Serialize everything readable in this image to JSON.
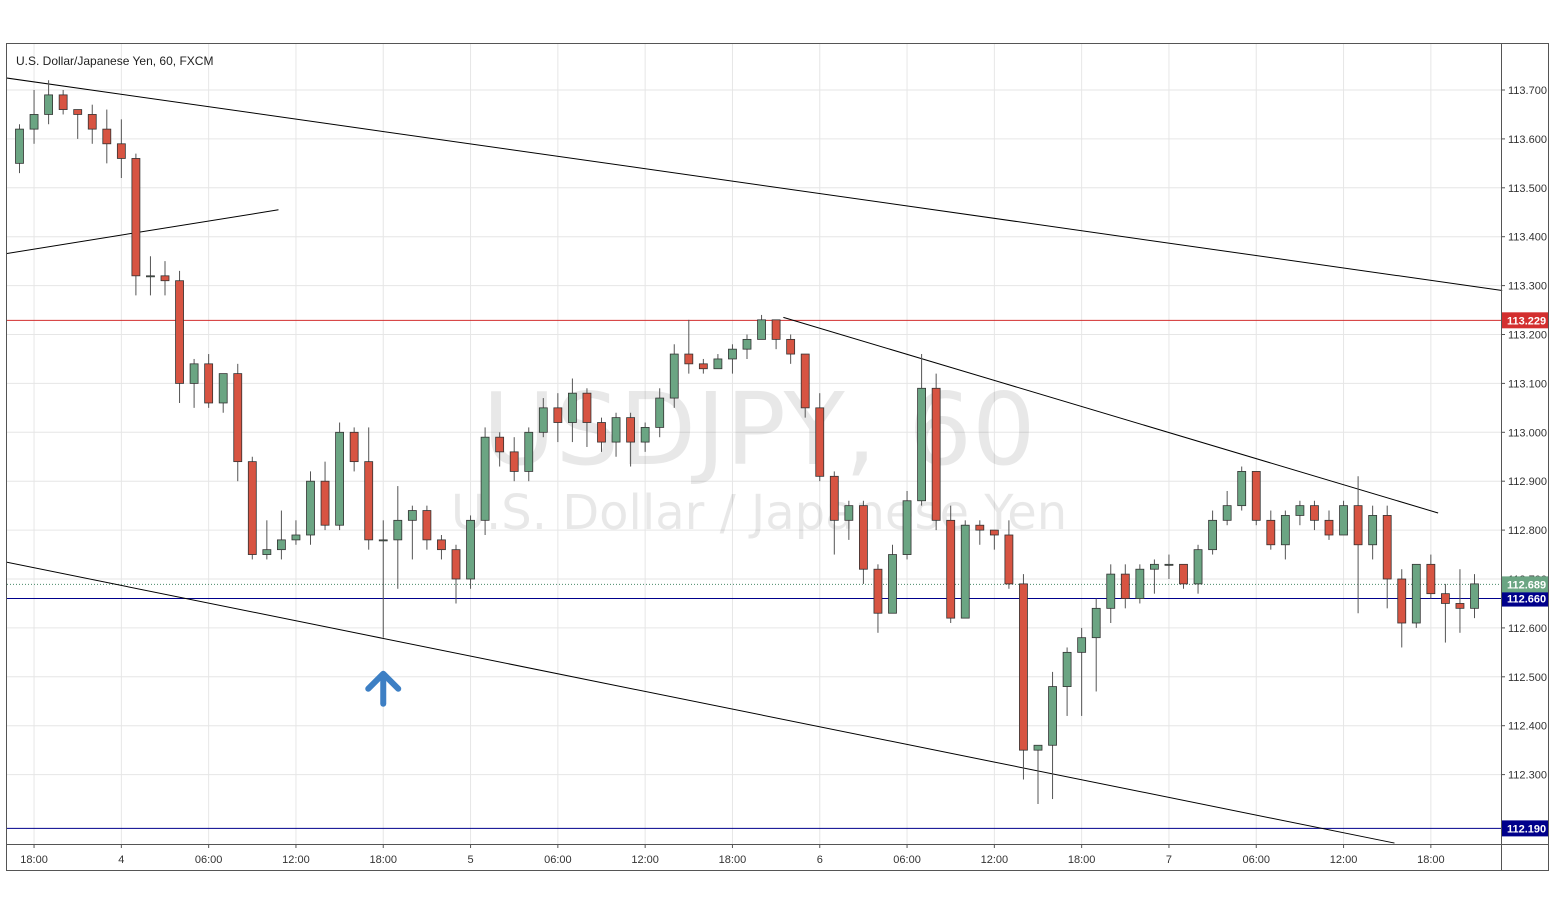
{
  "chart_data": {
    "type": "candlestick",
    "title": "U.S. Dollar/Japanese Yen, 60, FXCM",
    "watermark": {
      "symbol": "USDJPY, 60",
      "name": "U.S. Dollar / Japanese Yen"
    },
    "interval": "60",
    "ylim": [
      112.16,
      113.78
    ],
    "y_ticks": [
      "113.700",
      "113.600",
      "113.500",
      "113.400",
      "113.300",
      "113.200",
      "113.100",
      "113.000",
      "112.900",
      "112.800",
      "112.700",
      "112.600",
      "112.500",
      "112.400",
      "112.300"
    ],
    "x_ticks": [
      "18:00",
      "4",
      "06:00",
      "12:00",
      "18:00",
      "5",
      "06:00",
      "12:00",
      "18:00",
      "6",
      "06:00",
      "12:00",
      "18:00",
      "7",
      "06:00",
      "12:00",
      "18:00"
    ],
    "x_tick_bars": [
      1,
      7,
      13,
      19,
      25,
      31,
      37,
      43,
      49,
      55,
      61,
      67,
      73,
      79,
      85,
      91,
      97
    ],
    "grid": true,
    "colors": {
      "up": "#6ba583",
      "down": "#d75442",
      "wick": "#555555",
      "border": "#333333",
      "resistance": "#d32f2f",
      "support": "#00008b",
      "last": "#2196f3",
      "trendline": "#000000",
      "arrow": "#3d7fc4"
    },
    "candles": [
      [
        113.55,
        113.62,
        113.53,
        113.63
      ],
      [
        113.62,
        113.65,
        113.59,
        113.7
      ],
      [
        113.65,
        113.69,
        113.63,
        113.72
      ],
      [
        113.69,
        113.66,
        113.65,
        113.7
      ],
      [
        113.66,
        113.65,
        113.6,
        113.66
      ],
      [
        113.65,
        113.62,
        113.59,
        113.67
      ],
      [
        113.62,
        113.59,
        113.55,
        113.66
      ],
      [
        113.59,
        113.56,
        113.52,
        113.64
      ],
      [
        113.56,
        113.32,
        113.28,
        113.57
      ],
      [
        113.32,
        113.32,
        113.28,
        113.36
      ],
      [
        113.32,
        113.31,
        113.28,
        113.35
      ],
      [
        113.31,
        113.1,
        113.06,
        113.33
      ],
      [
        113.1,
        113.14,
        113.05,
        113.15
      ],
      [
        113.14,
        113.06,
        113.05,
        113.16
      ],
      [
        113.06,
        113.12,
        113.04,
        113.12
      ],
      [
        113.12,
        112.94,
        112.9,
        113.14
      ],
      [
        112.94,
        112.75,
        112.74,
        112.95
      ],
      [
        112.75,
        112.76,
        112.74,
        112.82
      ],
      [
        112.76,
        112.78,
        112.74,
        112.84
      ],
      [
        112.78,
        112.79,
        112.77,
        112.82
      ],
      [
        112.79,
        112.9,
        112.77,
        112.92
      ],
      [
        112.9,
        112.81,
        112.8,
        112.94
      ],
      [
        112.81,
        113.0,
        112.8,
        113.02
      ],
      [
        113.0,
        112.94,
        112.92,
        113.01
      ],
      [
        112.94,
        112.78,
        112.76,
        113.01
      ],
      [
        112.78,
        112.78,
        112.58,
        112.82
      ],
      [
        112.78,
        112.82,
        112.68,
        112.89
      ],
      [
        112.82,
        112.84,
        112.74,
        112.85
      ],
      [
        112.84,
        112.78,
        112.76,
        112.85
      ],
      [
        112.78,
        112.76,
        112.74,
        112.79
      ],
      [
        112.76,
        112.7,
        112.65,
        112.77
      ],
      [
        112.7,
        112.82,
        112.68,
        112.83
      ],
      [
        112.82,
        112.99,
        112.79,
        113.01
      ],
      [
        112.99,
        112.96,
        112.93,
        113.0
      ],
      [
        112.96,
        112.92,
        112.9,
        112.99
      ],
      [
        112.92,
        113.0,
        112.9,
        113.01
      ],
      [
        113.0,
        113.05,
        112.99,
        113.07
      ],
      [
        113.05,
        113.02,
        112.98,
        113.08
      ],
      [
        113.02,
        113.08,
        112.98,
        113.11
      ],
      [
        113.08,
        113.02,
        112.97,
        113.09
      ],
      [
        113.02,
        112.98,
        112.96,
        113.03
      ],
      [
        112.98,
        113.03,
        112.95,
        113.04
      ],
      [
        113.03,
        112.98,
        112.93,
        113.04
      ],
      [
        112.98,
        113.01,
        112.96,
        113.02
      ],
      [
        113.01,
        113.07,
        112.99,
        113.09
      ],
      [
        113.07,
        113.16,
        113.05,
        113.18
      ],
      [
        113.16,
        113.14,
        113.12,
        113.23
      ],
      [
        113.14,
        113.13,
        113.12,
        113.15
      ],
      [
        113.13,
        113.15,
        113.13,
        113.16
      ],
      [
        113.15,
        113.17,
        113.12,
        113.18
      ],
      [
        113.17,
        113.19,
        113.15,
        113.2
      ],
      [
        113.19,
        113.23,
        113.19,
        113.24
      ],
      [
        113.23,
        113.19,
        113.17,
        113.23
      ],
      [
        113.19,
        113.16,
        113.14,
        113.2
      ],
      [
        113.16,
        113.05,
        113.03,
        113.16
      ],
      [
        113.05,
        112.91,
        112.9,
        113.08
      ],
      [
        112.91,
        112.82,
        112.75,
        112.92
      ],
      [
        112.82,
        112.85,
        112.78,
        112.86
      ],
      [
        112.85,
        112.72,
        112.69,
        112.86
      ],
      [
        112.72,
        112.63,
        112.59,
        112.73
      ],
      [
        112.63,
        112.75,
        112.63,
        112.77
      ],
      [
        112.75,
        112.86,
        112.74,
        112.88
      ],
      [
        112.86,
        113.09,
        112.85,
        113.16
      ],
      [
        113.09,
        112.82,
        112.8,
        113.12
      ],
      [
        112.82,
        112.62,
        112.61,
        112.85
      ],
      [
        112.62,
        112.81,
        112.62,
        112.82
      ],
      [
        112.81,
        112.8,
        112.77,
        112.82
      ],
      [
        112.8,
        112.79,
        112.76,
        112.8
      ],
      [
        112.79,
        112.69,
        112.68,
        112.82
      ],
      [
        112.69,
        112.35,
        112.29,
        112.71
      ],
      [
        112.35,
        112.36,
        112.24,
        112.36
      ],
      [
        112.36,
        112.48,
        112.25,
        112.51
      ],
      [
        112.48,
        112.55,
        112.42,
        112.56
      ],
      [
        112.55,
        112.58,
        112.42,
        112.6
      ],
      [
        112.58,
        112.64,
        112.47,
        112.66
      ],
      [
        112.64,
        112.71,
        112.61,
        112.73
      ],
      [
        112.71,
        112.66,
        112.64,
        112.73
      ],
      [
        112.66,
        112.72,
        112.65,
        112.73
      ],
      [
        112.72,
        112.73,
        112.67,
        112.74
      ],
      [
        112.73,
        112.73,
        112.7,
        112.75
      ],
      [
        112.73,
        112.69,
        112.68,
        112.73
      ],
      [
        112.69,
        112.76,
        112.67,
        112.77
      ],
      [
        112.76,
        112.82,
        112.75,
        112.84
      ],
      [
        112.82,
        112.85,
        112.81,
        112.88
      ],
      [
        112.85,
        112.92,
        112.84,
        112.93
      ],
      [
        112.92,
        112.82,
        112.81,
        112.92
      ],
      [
        112.82,
        112.77,
        112.76,
        112.84
      ],
      [
        112.77,
        112.83,
        112.74,
        112.84
      ],
      [
        112.83,
        112.85,
        112.81,
        112.86
      ],
      [
        112.85,
        112.82,
        112.8,
        112.86
      ],
      [
        112.82,
        112.79,
        112.78,
        112.84
      ],
      [
        112.79,
        112.85,
        112.79,
        112.86
      ],
      [
        112.85,
        112.77,
        112.63,
        112.91
      ],
      [
        112.77,
        112.83,
        112.74,
        112.85
      ],
      [
        112.83,
        112.7,
        112.64,
        112.85
      ],
      [
        112.7,
        112.61,
        112.56,
        112.72
      ],
      [
        112.61,
        112.73,
        112.6,
        112.73
      ],
      [
        112.73,
        112.67,
        112.66,
        112.75
      ],
      [
        112.67,
        112.65,
        112.57,
        112.69
      ],
      [
        112.65,
        112.64,
        112.59,
        112.72
      ],
      [
        112.64,
        112.69,
        112.62,
        112.71
      ]
    ],
    "horizontal_lines": [
      {
        "value": 113.229,
        "label": "113.229",
        "color": "resistance"
      },
      {
        "value": 112.66,
        "label": "112.660",
        "color": "support"
      },
      {
        "value": 112.19,
        "label": "112.190",
        "color": "support"
      }
    ],
    "last_price": {
      "value": 112.689,
      "label": "112.689"
    },
    "trendlines": [
      [
        -1.0,
        113.725,
        101.9,
        113.29
      ],
      [
        -1.0,
        113.365,
        17.8,
        113.455
      ],
      [
        -1.0,
        112.735,
        94.5,
        112.16
      ],
      [
        52.5,
        113.235,
        97.5,
        112.835
      ]
    ],
    "arrow": {
      "bar": 25,
      "value": 112.5,
      "direction": "up"
    }
  }
}
